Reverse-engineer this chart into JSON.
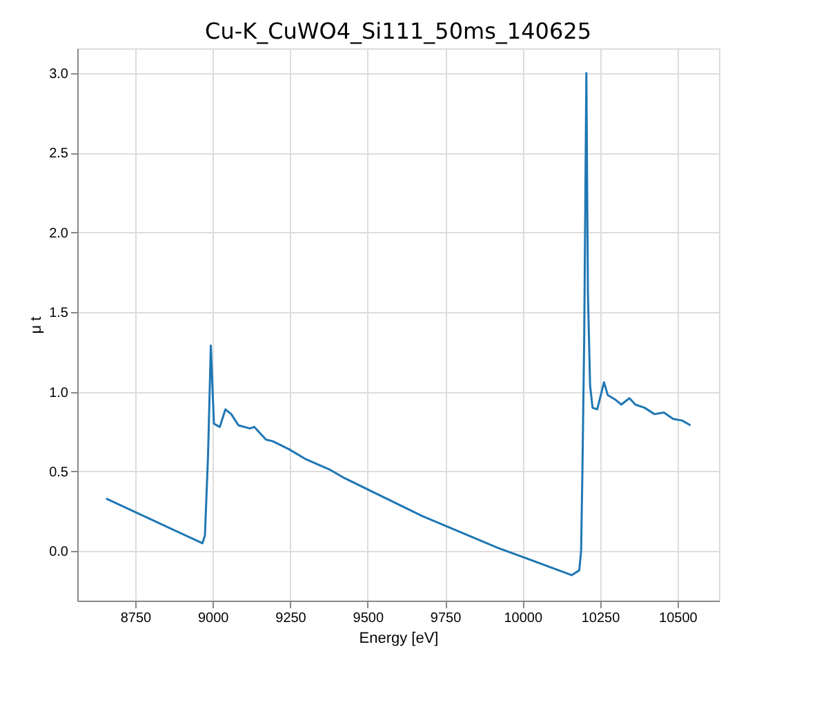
{
  "chart_data": {
    "type": "line",
    "title": "Cu-K_CuWO4_Si111_50ms_140625",
    "xlabel": "Energy [eV]",
    "ylabel": "μ t",
    "x": [
      8656,
      8967,
      8975,
      8985,
      8994,
      9004,
      9023,
      9041,
      9060,
      9083,
      9120,
      9134,
      9172,
      9194,
      9246,
      9298,
      9380,
      9424,
      9677,
      9922,
      10159,
      10183,
      10189,
      10193,
      10199,
      10206,
      10211,
      10218,
      10226,
      10241,
      10263,
      10275,
      10300,
      10319,
      10345,
      10364,
      10394,
      10426,
      10456,
      10486,
      10515,
      10542
    ],
    "series": [
      {
        "color": "#1f77b4",
        "values": [
          0.33,
          0.05,
          0.1,
          0.6,
          1.29,
          0.8,
          0.78,
          0.89,
          0.86,
          0.79,
          0.77,
          0.78,
          0.7,
          0.69,
          0.64,
          0.58,
          0.51,
          0.46,
          0.22,
          0.02,
          -0.15,
          -0.12,
          0.0,
          0.47,
          1.33,
          3.0,
          1.62,
          1.04,
          0.9,
          0.89,
          1.06,
          0.98,
          0.95,
          0.92,
          0.96,
          0.92,
          0.9,
          0.86,
          0.87,
          0.83,
          0.82,
          0.79
        ]
      }
    ],
    "xlim": [
      8563,
      10634
    ],
    "ylim": [
      -0.31,
      3.155
    ],
    "xticks": [
      {
        "value": 8750,
        "label": "8750"
      },
      {
        "value": 9000,
        "label": "9000"
      },
      {
        "value": 9250,
        "label": "9250"
      },
      {
        "value": 9500,
        "label": "9500"
      },
      {
        "value": 9750,
        "label": "9750"
      },
      {
        "value": 10000,
        "label": "10000"
      },
      {
        "value": 10250,
        "label": "10250"
      },
      {
        "value": 10500,
        "label": "10500"
      }
    ],
    "yticks": [
      {
        "value": 0,
        "label": "0.0"
      },
      {
        "value": 0.5,
        "label": "0.5"
      },
      {
        "value": 1,
        "label": "1.0"
      },
      {
        "value": 1.5,
        "label": "1.5"
      },
      {
        "value": 2,
        "label": "2.0"
      },
      {
        "value": 2.5,
        "label": "2.5"
      },
      {
        "value": 3,
        "label": "3.0"
      }
    ],
    "grid": true,
    "line_style": "solid"
  }
}
